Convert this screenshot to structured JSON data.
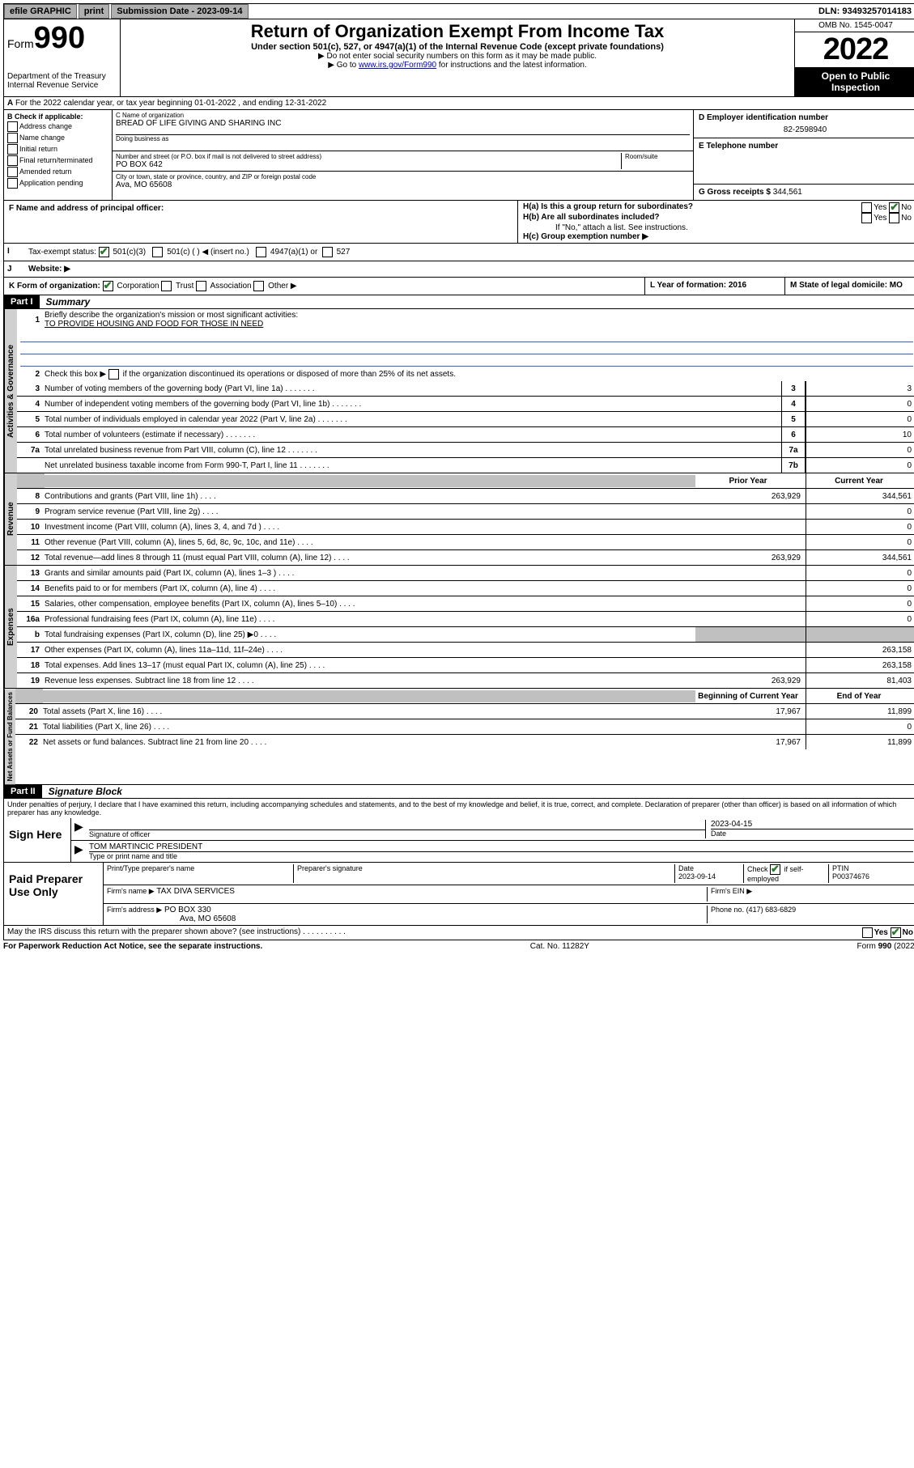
{
  "topbar": {
    "efile": "efile GRAPHIC",
    "print": "print",
    "subdate_label": "Submission Date - 2023-09-14",
    "dln": "DLN: 93493257014183"
  },
  "header": {
    "form_prefix": "Form",
    "form_num": "990",
    "dept": "Department of the Treasury",
    "irs": "Internal Revenue Service",
    "title": "Return of Organization Exempt From Income Tax",
    "sub1": "Under section 501(c), 527, or 4947(a)(1) of the Internal Revenue Code (except private foundations)",
    "sub2": "▶ Do not enter social security numbers on this form as it may be made public.",
    "sub3_pre": "▶ Go to ",
    "sub3_link": "www.irs.gov/Form990",
    "sub3_post": " for instructions and the latest information.",
    "omb": "OMB No. 1545-0047",
    "year": "2022",
    "inspect": "Open to Public Inspection"
  },
  "lineA": "For the 2022 calendar year, or tax year beginning 01-01-2022   , and ending 12-31-2022",
  "sectionB": {
    "label": "B Check if applicable:",
    "items": [
      "Address change",
      "Name change",
      "Initial return",
      "Final return/terminated",
      "Amended return",
      "Application pending"
    ]
  },
  "sectionC": {
    "name_label": "C Name of organization",
    "name": "BREAD OF LIFE GIVING AND SHARING INC",
    "dba_label": "Doing business as",
    "addr_label": "Number and street (or P.O. box if mail is not delivered to street address)",
    "room_label": "Room/suite",
    "addr": "PO BOX 642",
    "city_label": "City or town, state or province, country, and ZIP or foreign postal code",
    "city": "Ava, MO  65608"
  },
  "sectionD": {
    "label": "D Employer identification number",
    "val": "82-2598940"
  },
  "sectionE": {
    "label": "E Telephone number",
    "val": ""
  },
  "sectionG": {
    "label": "G Gross receipts $",
    "val": "344,561"
  },
  "sectionF": {
    "label": "F  Name and address of principal officer:"
  },
  "sectionH": {
    "a": "H(a)  Is this a group return for subordinates?",
    "b": "H(b)  Are all subordinates included?",
    "b_note": "If \"No,\" attach a list. See instructions.",
    "c": "H(c)  Group exemption number ▶"
  },
  "sectionI": {
    "label": "Tax-exempt status:",
    "opts": [
      "501(c)(3)",
      "501(c) (  ) ◀ (insert no.)",
      "4947(a)(1) or",
      "527"
    ]
  },
  "sectionJ": {
    "label": "Website: ▶"
  },
  "sectionK": {
    "label": "K Form of organization:",
    "opts": [
      "Corporation",
      "Trust",
      "Association",
      "Other ▶"
    ]
  },
  "sectionL": {
    "label": "L Year of formation: 2016"
  },
  "sectionM": {
    "label": "M State of legal domicile: MO"
  },
  "part1": {
    "hdr": "Part I",
    "title": "Summary",
    "q1": "Briefly describe the organization's mission or most significant activities:",
    "q1_ans": "TO PROVIDE HOUSING AND FOOD FOR THOSE IN NEED",
    "q2": "Check this box ▶      if the organization discontinued its operations or disposed of more than 25% of its net assets.",
    "lines_gov": [
      {
        "n": "3",
        "d": "Number of voting members of the governing body (Part VI, line 1a)",
        "box": "3",
        "v": "3"
      },
      {
        "n": "4",
        "d": "Number of independent voting members of the governing body (Part VI, line 1b)",
        "box": "4",
        "v": "0"
      },
      {
        "n": "5",
        "d": "Total number of individuals employed in calendar year 2022 (Part V, line 2a)",
        "box": "5",
        "v": "0"
      },
      {
        "n": "6",
        "d": "Total number of volunteers (estimate if necessary)",
        "box": "6",
        "v": "10"
      },
      {
        "n": "7a",
        "d": "Total unrelated business revenue from Part VIII, column (C), line 12",
        "box": "7a",
        "v": "0"
      },
      {
        "n": "",
        "d": "Net unrelated business taxable income from Form 990-T, Part I, line 11",
        "box": "7b",
        "v": "0"
      }
    ],
    "col_prior": "Prior Year",
    "col_curr": "Current Year",
    "lines_rev": [
      {
        "n": "8",
        "d": "Contributions and grants (Part VIII, line 1h)",
        "p": "263,929",
        "c": "344,561"
      },
      {
        "n": "9",
        "d": "Program service revenue (Part VIII, line 2g)",
        "p": "",
        "c": "0"
      },
      {
        "n": "10",
        "d": "Investment income (Part VIII, column (A), lines 3, 4, and 7d )",
        "p": "",
        "c": "0"
      },
      {
        "n": "11",
        "d": "Other revenue (Part VIII, column (A), lines 5, 6d, 8c, 9c, 10c, and 11e)",
        "p": "",
        "c": "0"
      },
      {
        "n": "12",
        "d": "Total revenue—add lines 8 through 11 (must equal Part VIII, column (A), line 12)",
        "p": "263,929",
        "c": "344,561"
      }
    ],
    "lines_exp": [
      {
        "n": "13",
        "d": "Grants and similar amounts paid (Part IX, column (A), lines 1–3 )",
        "p": "",
        "c": "0"
      },
      {
        "n": "14",
        "d": "Benefits paid to or for members (Part IX, column (A), line 4)",
        "p": "",
        "c": "0"
      },
      {
        "n": "15",
        "d": "Salaries, other compensation, employee benefits (Part IX, column (A), lines 5–10)",
        "p": "",
        "c": "0"
      },
      {
        "n": "16a",
        "d": "Professional fundraising fees (Part IX, column (A), line 11e)",
        "p": "",
        "c": "0"
      },
      {
        "n": "b",
        "d": "Total fundraising expenses (Part IX, column (D), line 25) ▶0",
        "p": "GRAY",
        "c": "GRAY"
      },
      {
        "n": "17",
        "d": "Other expenses (Part IX, column (A), lines 11a–11d, 11f–24e)",
        "p": "",
        "c": "263,158"
      },
      {
        "n": "18",
        "d": "Total expenses. Add lines 13–17 (must equal Part IX, column (A), line 25)",
        "p": "",
        "c": "263,158"
      },
      {
        "n": "19",
        "d": "Revenue less expenses. Subtract line 18 from line 12",
        "p": "263,929",
        "c": "81,403"
      }
    ],
    "col_begin": "Beginning of Current Year",
    "col_end": "End of Year",
    "lines_net": [
      {
        "n": "20",
        "d": "Total assets (Part X, line 16)",
        "p": "17,967",
        "c": "11,899"
      },
      {
        "n": "21",
        "d": "Total liabilities (Part X, line 26)",
        "p": "",
        "c": "0"
      },
      {
        "n": "22",
        "d": "Net assets or fund balances. Subtract line 21 from line 20",
        "p": "17,967",
        "c": "11,899"
      }
    ]
  },
  "vtabs": {
    "gov": "Activities & Governance",
    "rev": "Revenue",
    "exp": "Expenses",
    "net": "Net Assets or Fund Balances"
  },
  "part2": {
    "hdr": "Part II",
    "title": "Signature Block",
    "decl": "Under penalties of perjury, I declare that I have examined this return, including accompanying schedules and statements, and to the best of my knowledge and belief, it is true, correct, and complete. Declaration of preparer (other than officer) is based on all information of which preparer has any knowledge."
  },
  "sign": {
    "here": "Sign Here",
    "sig_label": "Signature of officer",
    "date_label": "Date",
    "date_val": "2023-04-15",
    "name": "TOM MARTINCIC  PRESIDENT",
    "name_label": "Type or print name and title"
  },
  "paid": {
    "label": "Paid Preparer Use Only",
    "c1": "Print/Type preparer's name",
    "c2": "Preparer's signature",
    "c3": "Date",
    "c3v": "2023-09-14",
    "c4": "Check       if self-employed",
    "c5": "PTIN",
    "c5v": "P00374676",
    "firm_name_l": "Firm's name    ▶",
    "firm_name": "TAX DIVA SERVICES",
    "firm_ein_l": "Firm's EIN ▶",
    "firm_addr_l": "Firm's address ▶",
    "firm_addr1": "PO BOX 330",
    "firm_addr2": "Ava, MO  65608",
    "phone_l": "Phone no.",
    "phone": "(417) 683-6829"
  },
  "discuss": "May the IRS discuss this return with the preparer shown above? (see instructions)",
  "footer": {
    "l": "For Paperwork Reduction Act Notice, see the separate instructions.",
    "m": "Cat. No. 11282Y",
    "r": "Form 990 (2022)"
  }
}
